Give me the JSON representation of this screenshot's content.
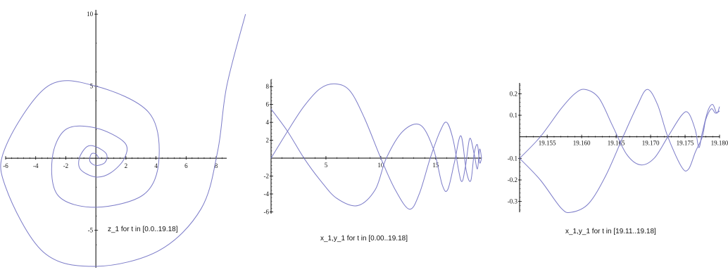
{
  "colors": {
    "curve": "#7B7BC8",
    "axis": "#000000",
    "background": "#ffffff"
  },
  "chart_data": [
    {
      "type": "line",
      "title": "z_1 for t in [0.0..19.18]",
      "xlim": [
        -6,
        8.7
      ],
      "ylim": [
        -7.6,
        10.3
      ],
      "xticks": [
        -6,
        -4,
        -2,
        2,
        4,
        6,
        8
      ],
      "yticks": [
        -5,
        5,
        10
      ],
      "grid": false,
      "series": [
        {
          "kind": "spiral",
          "points": [
            [
              9.95,
              10.0
            ],
            [
              8.7,
              5.0
            ],
            [
              8.1,
              0.5
            ],
            [
              7.0,
              -3.5
            ],
            [
              4.2,
              -6.4
            ],
            [
              0.0,
              -7.5
            ],
            [
              -3.5,
              -6.5
            ],
            [
              -6.0,
              -2.0
            ],
            [
              -6.0,
              0.8
            ],
            [
              -3.2,
              5.0
            ],
            [
              0.0,
              5.0
            ],
            [
              3.5,
              3.2
            ],
            [
              4.2,
              0.0
            ],
            [
              3.2,
              -2.5
            ],
            [
              0.0,
              -3.4
            ],
            [
              -2.5,
              -2.6
            ],
            [
              -2.9,
              0.0
            ],
            [
              -2.0,
              2.0
            ],
            [
              0.0,
              2.1
            ],
            [
              1.9,
              1.1
            ],
            [
              1.9,
              0.0
            ],
            [
              1.0,
              -1.0
            ],
            [
              0.0,
              -1.3
            ],
            [
              -1.0,
              -0.8
            ],
            [
              -1.1,
              0.0
            ],
            [
              -0.6,
              0.8
            ],
            [
              0.0,
              0.8
            ],
            [
              0.7,
              0.3
            ],
            [
              0.6,
              -0.3
            ],
            [
              0.0,
              -0.5
            ],
            [
              -0.4,
              -0.2
            ],
            [
              -0.3,
              0.3
            ],
            [
              0.0,
              0.3
            ],
            [
              0.2,
              0.0
            ]
          ]
        }
      ]
    },
    {
      "type": "line",
      "title": "x_1,y_1 for t in [0.00..19.18]",
      "xlim": [
        0,
        19.18
      ],
      "ylim": [
        -6.2,
        8.8
      ],
      "xticks": [
        5,
        10,
        15
      ],
      "yticks": [
        -6,
        -4,
        -2,
        2,
        4,
        6,
        8
      ],
      "grid": false,
      "series": [
        {
          "name": "x_1",
          "points": [
            [
              0.0,
              0.0
            ],
            [
              1.5,
              3.0
            ],
            [
              3.0,
              5.8
            ],
            [
              4.5,
              7.8
            ],
            [
              5.9,
              8.3
            ],
            [
              7.2,
              7.5
            ],
            [
              8.5,
              4.5
            ],
            [
              10.0,
              0.0
            ],
            [
              11.3,
              -3.5
            ],
            [
              12.6,
              -5.7
            ],
            [
              13.5,
              -4.0
            ],
            [
              14.5,
              0.0
            ],
            [
              15.4,
              3.0
            ],
            [
              16.0,
              4.0
            ],
            [
              16.6,
              2.0
            ],
            [
              17.3,
              -2.5
            ],
            [
              17.7,
              -1.0
            ],
            [
              18.1,
              2.2
            ],
            [
              18.5,
              0.5
            ],
            [
              18.8,
              -1.2
            ],
            [
              19.0,
              1.0
            ],
            [
              19.18,
              0.0
            ]
          ]
        },
        {
          "name": "y_1",
          "points": [
            [
              0.0,
              5.5
            ],
            [
              1.5,
              3.0
            ],
            [
              3.0,
              0.0
            ],
            [
              4.5,
              -2.5
            ],
            [
              6.0,
              -4.5
            ],
            [
              7.9,
              -5.3
            ],
            [
              9.5,
              -3.5
            ],
            [
              10.5,
              0.0
            ],
            [
              12.0,
              3.0
            ],
            [
              13.6,
              3.7
            ],
            [
              14.8,
              1.0
            ],
            [
              15.6,
              -3.0
            ],
            [
              16.1,
              -3.5
            ],
            [
              16.7,
              -0.5
            ],
            [
              17.3,
              2.5
            ],
            [
              17.8,
              -1.5
            ],
            [
              18.2,
              -2.5
            ],
            [
              18.5,
              0.5
            ],
            [
              18.8,
              1.5
            ],
            [
              19.0,
              -0.5
            ],
            [
              19.18,
              0.0
            ]
          ]
        }
      ]
    },
    {
      "type": "line",
      "title": "x_1,y_1 for t in [19.11..19.18]",
      "xlim": [
        19.151,
        19.18
      ],
      "ylim": [
        -0.35,
        0.25
      ],
      "xticks": [
        19.155,
        19.16,
        19.165,
        19.17,
        19.175,
        19.18
      ],
      "xtick_labels": [
        "19.155",
        "19.160",
        "19.165",
        "19.170",
        "19.175",
        "19.180"
      ],
      "yticks": [
        -0.3,
        -0.2,
        -0.1,
        0.1,
        0.2
      ],
      "grid": false,
      "series": [
        {
          "name": "x_1",
          "points": [
            [
              19.151,
              -0.1
            ],
            [
              19.154,
              -0.2
            ],
            [
              19.157,
              -0.33
            ],
            [
              19.1585,
              -0.35
            ],
            [
              19.161,
              -0.31
            ],
            [
              19.1635,
              -0.18
            ],
            [
              19.166,
              0.0
            ],
            [
              19.168,
              0.14
            ],
            [
              19.1695,
              0.22
            ],
            [
              19.171,
              0.15
            ],
            [
              19.1725,
              0.0
            ],
            [
              19.1745,
              -0.14
            ],
            [
              19.1755,
              -0.15
            ],
            [
              19.1765,
              -0.07
            ],
            [
              19.1775,
              0.0
            ],
            [
              19.178,
              0.08
            ],
            [
              19.1788,
              0.13
            ],
            [
              19.1794,
              0.11
            ],
            [
              19.18,
              0.12
            ]
          ]
        },
        {
          "name": "y_1",
          "points": [
            [
              19.151,
              -0.1
            ],
            [
              19.154,
              0.0
            ],
            [
              19.157,
              0.13
            ],
            [
              19.159,
              0.2
            ],
            [
              19.1605,
              0.22
            ],
            [
              19.1625,
              0.18
            ],
            [
              19.1645,
              0.05
            ],
            [
              19.1665,
              -0.08
            ],
            [
              19.1685,
              -0.13
            ],
            [
              19.1705,
              -0.1
            ],
            [
              19.1725,
              0.0
            ],
            [
              19.1745,
              0.1
            ],
            [
              19.1755,
              0.11
            ],
            [
              19.1765,
              0.03
            ],
            [
              19.177,
              -0.05
            ],
            [
              19.1775,
              0.02
            ],
            [
              19.1783,
              0.12
            ],
            [
              19.179,
              0.15
            ],
            [
              19.1796,
              0.11
            ],
            [
              19.18,
              0.14
            ]
          ]
        }
      ]
    }
  ]
}
